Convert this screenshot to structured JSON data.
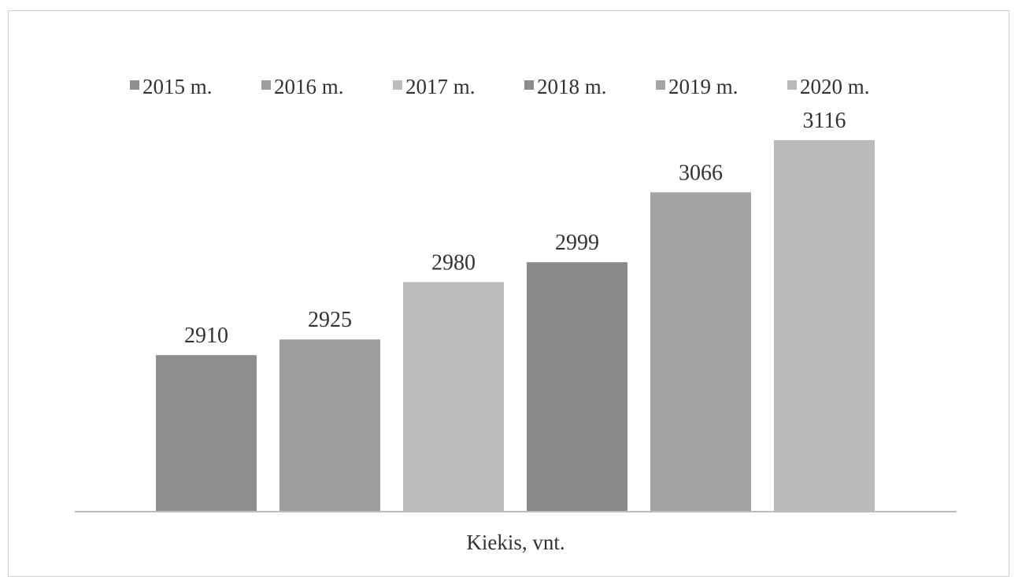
{
  "chart_data": {
    "type": "bar",
    "categories": [
      "2015 m.",
      "2016 m.",
      "2017 m.",
      "2018 m.",
      "2019 m.",
      "2020 m."
    ],
    "values": [
      2910,
      2925,
      2980,
      2999,
      3066,
      3116
    ],
    "data_labels": [
      "2910",
      "2925",
      "2980",
      "2999",
      "3066",
      "3116"
    ],
    "xlabel": "Kiekis, vnt.",
    "ylabel": "",
    "ylim": [
      2760,
      3130
    ],
    "grid": false,
    "legend_position": "top",
    "colors": [
      "#8f8f8f",
      "#9d9d9d",
      "#bdbdbd",
      "#8a8a8a",
      "#a3a3a3",
      "#bababa"
    ]
  }
}
